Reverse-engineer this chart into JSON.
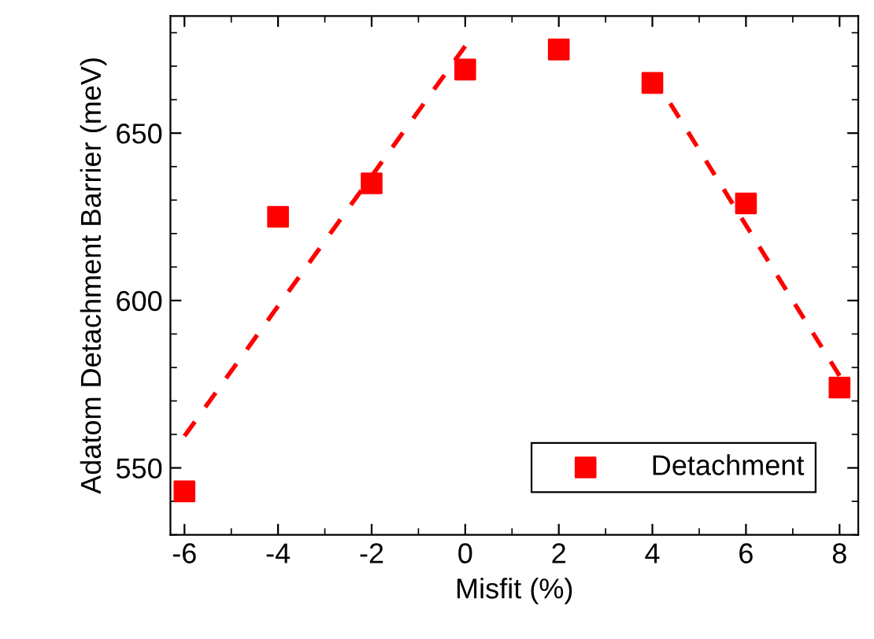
{
  "chart_data": {
    "type": "scatter",
    "xlabel": "Misfit (%)",
    "ylabel": "Adatom Detachment Barrier (meV)",
    "x": [
      -6,
      -4,
      -2,
      0,
      2,
      4,
      6,
      8
    ],
    "series": [
      {
        "name": "Detachment",
        "color": "#ff0000",
        "values": [
          543,
          625,
          635,
          669,
          675,
          665,
          629,
          574
        ],
        "marker": "square"
      },
      {
        "type": "line",
        "color": "#ff0000",
        "x": [
          -6,
          0
        ],
        "values": [
          559.5,
          676
        ],
        "line_style": "dashed",
        "marker": "none"
      },
      {
        "type": "line",
        "color": "#ff0000",
        "x": [
          4,
          8
        ],
        "values": [
          667.5,
          577.5
        ],
        "line_style": "dashed",
        "marker": "none"
      }
    ],
    "xlim": [
      -6.3,
      8.4
    ],
    "xticks": [
      -6,
      -4,
      -2,
      0,
      2,
      4,
      6,
      8
    ],
    "ylim": [
      530,
      685
    ],
    "yticks": [
      550,
      600,
      650
    ],
    "grid": false,
    "legend": "bottom right"
  }
}
